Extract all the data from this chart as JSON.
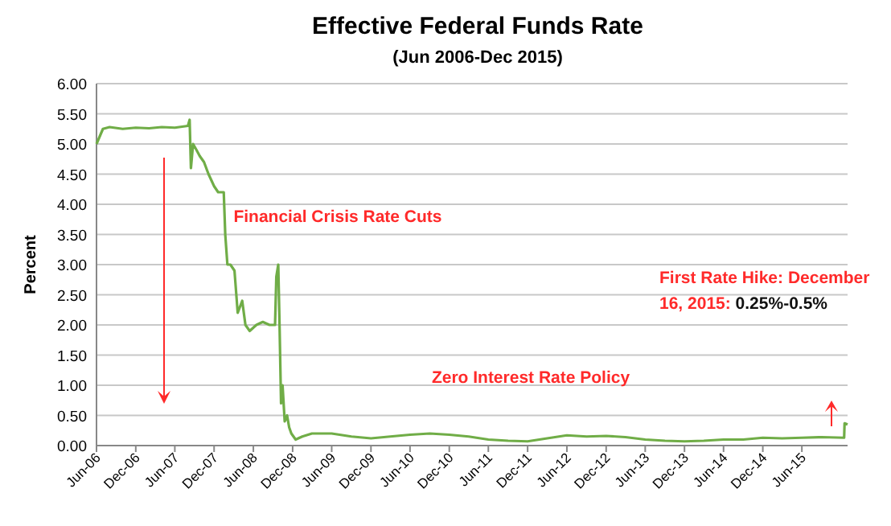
{
  "chart_data": {
    "type": "line",
    "title": "Effective Federal Funds Rate",
    "subtitle": "(Jun 2006-Dec 2015)",
    "ylabel": "Percent",
    "annotations": [
      "Financial Crisis Rate Cuts",
      "Zero Interest Rate Policy",
      "First Rate Hike: December 16, 2015: 0.25%-0.5%"
    ],
    "series": [
      {
        "color": "#70ad47",
        "x": [
          "2006-06-01",
          "2006-07-01",
          "2006-08-01",
          "2006-10-01",
          "2006-12-01",
          "2007-02-01",
          "2007-04-01",
          "2007-06-01",
          "2007-08-01",
          "2007-08-09",
          "2007-08-15",
          "2007-08-25",
          "2007-09-10",
          "2007-09-25",
          "2007-10-15",
          "2007-11-05",
          "2007-12-01",
          "2007-12-20",
          "2008-01-15",
          "2008-01-22",
          "2008-02-01",
          "2008-02-15",
          "2008-03-05",
          "2008-03-20",
          "2008-04-10",
          "2008-04-25",
          "2008-05-15",
          "2008-06-15",
          "2008-07-15",
          "2008-08-15",
          "2008-09-10",
          "2008-09-16",
          "2008-09-25",
          "2008-10-01",
          "2008-10-08",
          "2008-10-15",
          "2008-10-25",
          "2008-11-05",
          "2008-11-15",
          "2008-11-25",
          "2008-12-15",
          "2009-01-15",
          "2009-03-01",
          "2009-06-01",
          "2009-09-01",
          "2009-12-01",
          "2010-03-01",
          "2010-06-01",
          "2010-09-01",
          "2010-12-01",
          "2011-03-01",
          "2011-06-01",
          "2011-09-01",
          "2011-12-01",
          "2012-03-01",
          "2012-06-01",
          "2012-09-01",
          "2012-12-01",
          "2013-03-01",
          "2013-06-01",
          "2013-09-01",
          "2013-12-01",
          "2014-03-01",
          "2014-06-01",
          "2014-09-01",
          "2014-12-01",
          "2015-03-01",
          "2015-06-01",
          "2015-09-01",
          "2015-12-15",
          "2015-12-17",
          "2015-12-31"
        ],
        "values": [
          5.0,
          5.25,
          5.28,
          5.25,
          5.27,
          5.26,
          5.28,
          5.27,
          5.3,
          5.4,
          4.6,
          5.0,
          4.9,
          4.8,
          4.7,
          4.5,
          4.3,
          4.2,
          4.2,
          3.5,
          3.0,
          3.0,
          2.9,
          2.2,
          2.4,
          2.0,
          1.9,
          2.0,
          2.05,
          2.0,
          2.0,
          2.8,
          3.0,
          2.0,
          0.7,
          1.0,
          0.4,
          0.5,
          0.3,
          0.2,
          0.1,
          0.15,
          0.2,
          0.2,
          0.15,
          0.12,
          0.15,
          0.18,
          0.2,
          0.18,
          0.15,
          0.1,
          0.08,
          0.07,
          0.12,
          0.17,
          0.15,
          0.16,
          0.14,
          0.1,
          0.08,
          0.07,
          0.08,
          0.1,
          0.1,
          0.13,
          0.12,
          0.13,
          0.14,
          0.13,
          0.37,
          0.35
        ]
      }
    ],
    "xlim": [
      "2006-06-01",
      "2015-12-31"
    ],
    "xticks": [
      {
        "value": "2006-06-01",
        "label": "Jun-06"
      },
      {
        "value": "2006-12-01",
        "label": "Dec-06"
      },
      {
        "value": "2007-06-01",
        "label": "Jun-07"
      },
      {
        "value": "2007-12-01",
        "label": "Dec-07"
      },
      {
        "value": "2008-06-01",
        "label": "Jun-08"
      },
      {
        "value": "2008-12-01",
        "label": "Dec-08"
      },
      {
        "value": "2009-06-01",
        "label": "Jun-09"
      },
      {
        "value": "2009-12-01",
        "label": "Dec-09"
      },
      {
        "value": "2010-06-01",
        "label": "Jun-10"
      },
      {
        "value": "2010-12-01",
        "label": "Dec-10"
      },
      {
        "value": "2011-06-01",
        "label": "Jun-11"
      },
      {
        "value": "2011-12-01",
        "label": "Dec-11"
      },
      {
        "value": "2012-06-01",
        "label": "Jun-12"
      },
      {
        "value": "2012-12-01",
        "label": "Dec-12"
      },
      {
        "value": "2013-06-01",
        "label": "Jun-13"
      },
      {
        "value": "2013-12-01",
        "label": "Dec-13"
      },
      {
        "value": "2014-06-01",
        "label": "Jun-14"
      },
      {
        "value": "2014-12-01",
        "label": "Dec-14"
      },
      {
        "value": "2015-06-01",
        "label": "Jun-15"
      }
    ],
    "ylim": [
      0,
      6
    ],
    "yticks": [
      {
        "value": 0,
        "label": "0.00"
      },
      {
        "value": 0.5,
        "label": "0.50"
      },
      {
        "value": 1,
        "label": "1.00"
      },
      {
        "value": 1.5,
        "label": "1.50"
      },
      {
        "value": 2,
        "label": "2.00"
      },
      {
        "value": 2.5,
        "label": "2.50"
      },
      {
        "value": 3,
        "label": "3.00"
      },
      {
        "value": 3.5,
        "label": "3.50"
      },
      {
        "value": 4,
        "label": "4.00"
      },
      {
        "value": 4.5,
        "label": "4.50"
      },
      {
        "value": 5,
        "label": "5.00"
      },
      {
        "value": 5.5,
        "label": "5.50"
      },
      {
        "value": 6,
        "label": "6.00"
      }
    ],
    "grid": "y",
    "marker": "none",
    "line_style": "solid"
  }
}
